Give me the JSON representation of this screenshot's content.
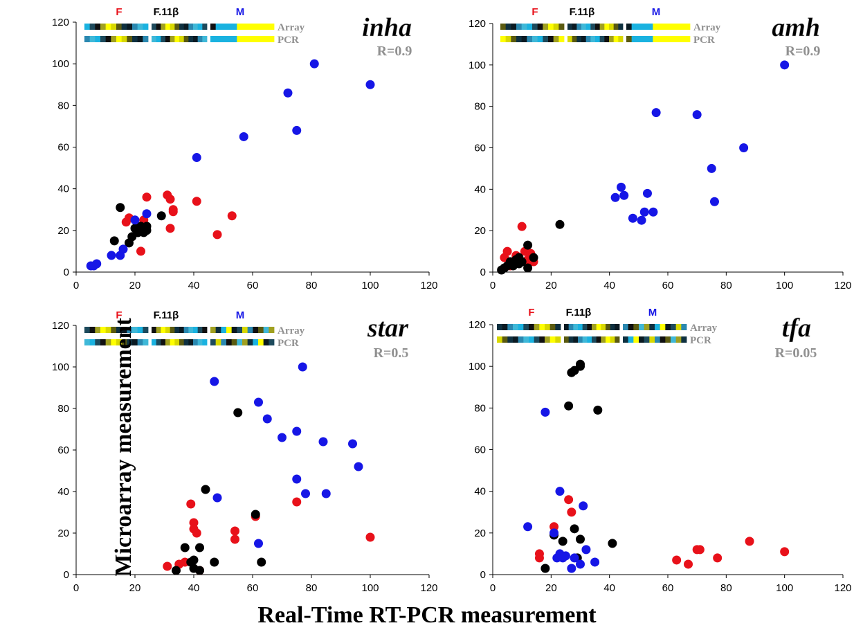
{
  "figure": {
    "ylabel": "Microarray measurement",
    "xlabel": "Real-Time RT-PCR  measurement"
  },
  "colors": {
    "F": "#e8111a",
    "F11b": "#000000",
    "M": "#1616e6",
    "heat_yellow": "#ffff00",
    "heat_cyan": "#1ab2e0",
    "label_gray": "#909090"
  },
  "chart_data": [
    {
      "type": "scatter",
      "title": "inha",
      "annotation": "R=0.9",
      "xlim": [
        0,
        120
      ],
      "ylim": [
        0,
        120
      ],
      "xticks": [
        "0",
        "20",
        "40",
        "60",
        "80",
        "100",
        "120"
      ],
      "yticks": [
        "0",
        "20",
        "40",
        "60",
        "80",
        "100",
        "120"
      ],
      "heatmap_groups": [
        "F",
        "F.11β",
        "M"
      ],
      "heatmap_rows": [
        "Array",
        "PCR"
      ],
      "series": [
        {
          "group": "F",
          "color": "#e8111a",
          "x": [
            17,
            18,
            22,
            23,
            24,
            31,
            32,
            32,
            33,
            33,
            41,
            48,
            53
          ],
          "y": [
            24,
            26,
            10,
            25,
            36,
            37,
            35,
            21,
            29,
            30,
            34,
            18,
            27
          ]
        },
        {
          "group": "F.11β",
          "color": "#000000",
          "x": [
            13,
            15,
            18,
            19,
            20,
            21,
            22,
            23,
            24,
            29,
            24,
            21
          ],
          "y": [
            15,
            31,
            14,
            17,
            21,
            19,
            22,
            19,
            22,
            27,
            20,
            19
          ]
        },
        {
          "group": "M",
          "color": "#1616e6",
          "x": [
            5,
            6,
            7,
            12,
            15,
            16,
            20,
            24,
            41,
            57,
            72,
            75,
            81,
            100
          ],
          "y": [
            3,
            3,
            4,
            8,
            8,
            11,
            25,
            28,
            55,
            65,
            86,
            68,
            100,
            90
          ]
        }
      ]
    },
    {
      "type": "scatter",
      "title": "amh",
      "annotation": "R=0.9",
      "xlim": [
        0,
        120
      ],
      "ylim": [
        0,
        120
      ],
      "xticks": [
        "0",
        "20",
        "40",
        "60",
        "80",
        "100",
        "120"
      ],
      "yticks": [
        "0",
        "20",
        "40",
        "60",
        "80",
        "100",
        "120"
      ],
      "heatmap_groups": [
        "F",
        "F.11β",
        "M"
      ],
      "heatmap_rows": [
        "Array",
        "PCR"
      ],
      "series": [
        {
          "group": "F",
          "color": "#e8111a",
          "x": [
            4,
            5,
            6,
            7,
            8,
            10,
            11,
            12,
            13,
            14
          ],
          "y": [
            7,
            10,
            3,
            5,
            8,
            22,
            10,
            6,
            9,
            5
          ]
        },
        {
          "group": "F.11β",
          "color": "#000000",
          "x": [
            3,
            4,
            5,
            6,
            7,
            8,
            9,
            9,
            10,
            12,
            12,
            14,
            23
          ],
          "y": [
            1,
            2,
            3,
            5,
            3,
            6,
            7,
            4,
            5,
            13,
            2,
            7,
            23
          ]
        },
        {
          "group": "M",
          "color": "#1616e6",
          "x": [
            42,
            44,
            45,
            48,
            51,
            52,
            53,
            55,
            56,
            70,
            75,
            76,
            86,
            100
          ],
          "y": [
            36,
            41,
            37,
            26,
            25,
            29,
            38,
            29,
            77,
            76,
            50,
            34,
            60,
            100
          ]
        }
      ]
    },
    {
      "type": "scatter",
      "title": "star",
      "annotation": "R=0.5",
      "xlim": [
        0,
        120
      ],
      "ylim": [
        0,
        120
      ],
      "xticks": [
        "0",
        "20",
        "40",
        "60",
        "80",
        "100",
        "120"
      ],
      "yticks": [
        "0",
        "20",
        "40",
        "60",
        "80",
        "100",
        "120"
      ],
      "heatmap_groups": [
        "F",
        "F.11β",
        "M"
      ],
      "heatmap_rows": [
        "Array",
        "PCR"
      ],
      "series": [
        {
          "group": "F",
          "color": "#e8111a",
          "x": [
            31,
            35,
            37,
            39,
            40,
            40,
            41,
            42,
            54,
            54,
            61,
            75,
            100
          ],
          "y": [
            4,
            5,
            6,
            34,
            25,
            22,
            20,
            2,
            21,
            17,
            28,
            35,
            18
          ]
        },
        {
          "group": "F.11β",
          "color": "#000000",
          "x": [
            34,
            37,
            39,
            40,
            40,
            42,
            42,
            44,
            47,
            55,
            61,
            63
          ],
          "y": [
            2,
            13,
            6,
            7,
            3,
            13,
            2,
            41,
            6,
            78,
            29,
            6
          ]
        },
        {
          "group": "M",
          "color": "#1616e6",
          "x": [
            47,
            48,
            62,
            62,
            65,
            70,
            75,
            75,
            77,
            78,
            84,
            85,
            94,
            96
          ],
          "y": [
            93,
            37,
            83,
            15,
            75,
            66,
            69,
            46,
            100,
            39,
            64,
            39,
            63,
            52
          ]
        }
      ]
    },
    {
      "type": "scatter",
      "title": "tfa",
      "annotation": "R=0.05",
      "xlim": [
        0,
        120
      ],
      "ylim": [
        0,
        120
      ],
      "xticks": [
        "0",
        "20",
        "40",
        "60",
        "80",
        "100",
        "120"
      ],
      "yticks": [
        "0",
        "20",
        "40",
        "60",
        "80",
        "100",
        "120"
      ],
      "heatmap_groups": [
        "F",
        "F.11β",
        "M"
      ],
      "heatmap_rows": [
        "Array",
        "PCR"
      ],
      "series": [
        {
          "group": "F",
          "color": "#e8111a",
          "x": [
            16,
            16,
            21,
            26,
            27,
            63,
            67,
            70,
            71,
            77,
            88,
            100
          ],
          "y": [
            10,
            8,
            23,
            36,
            30,
            7,
            5,
            12,
            12,
            8,
            16,
            11
          ]
        },
        {
          "group": "F.11β",
          "color": "#000000",
          "x": [
            18,
            21,
            24,
            26,
            27,
            28,
            28,
            29,
            30,
            30,
            30,
            36,
            41
          ],
          "y": [
            3,
            19,
            16,
            81,
            97,
            22,
            98,
            8,
            17,
            100,
            101,
            79,
            15
          ]
        },
        {
          "group": "M",
          "color": "#1616e6",
          "x": [
            12,
            18,
            21,
            22,
            23,
            23,
            24,
            25,
            27,
            28,
            30,
            31,
            32,
            35
          ],
          "y": [
            23,
            78,
            20,
            8,
            40,
            10,
            8,
            9,
            3,
            8,
            5,
            33,
            12,
            6
          ]
        }
      ]
    }
  ]
}
